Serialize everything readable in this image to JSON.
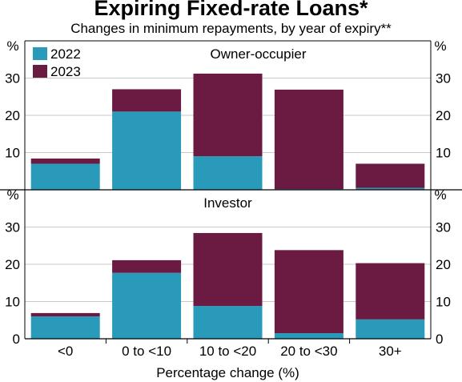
{
  "title": "Expiring Fixed-rate Loans*",
  "subtitle": "Changes in minimum repayments, by year of expiry**",
  "chart_data": {
    "type": "bar",
    "stacked": true,
    "categories": [
      "<0",
      "0 to <10",
      "10 to <20",
      "20 to <30",
      "30+"
    ],
    "xlabel": "Percentage change (%)",
    "yunit": "%",
    "legend": {
      "position": "top-left",
      "entries": [
        {
          "name": "2022",
          "color": "#2a9abb"
        },
        {
          "name": "2023",
          "color": "#6b1a42"
        }
      ]
    },
    "panels": [
      {
        "title": "Owner-occupier",
        "ylim": [
          0,
          40
        ],
        "yticks": [
          10,
          20,
          30
        ],
        "series": [
          {
            "name": "2022",
            "values": [
              7.0,
              21.0,
              9.0,
              0.2,
              0.5
            ]
          },
          {
            "name": "2023",
            "values": [
              1.4,
              6.0,
              22.2,
              26.7,
              6.5
            ]
          }
        ]
      },
      {
        "title": "Investor",
        "ylim": [
          0,
          40
        ],
        "yticks": [
          0,
          10,
          20,
          30
        ],
        "series": [
          {
            "name": "2022",
            "values": [
              6.0,
              17.7,
              8.8,
              1.5,
              5.2
            ]
          },
          {
            "name": "2023",
            "values": [
              0.9,
              3.4,
              19.6,
              22.3,
              15.1
            ]
          }
        ]
      }
    ]
  }
}
